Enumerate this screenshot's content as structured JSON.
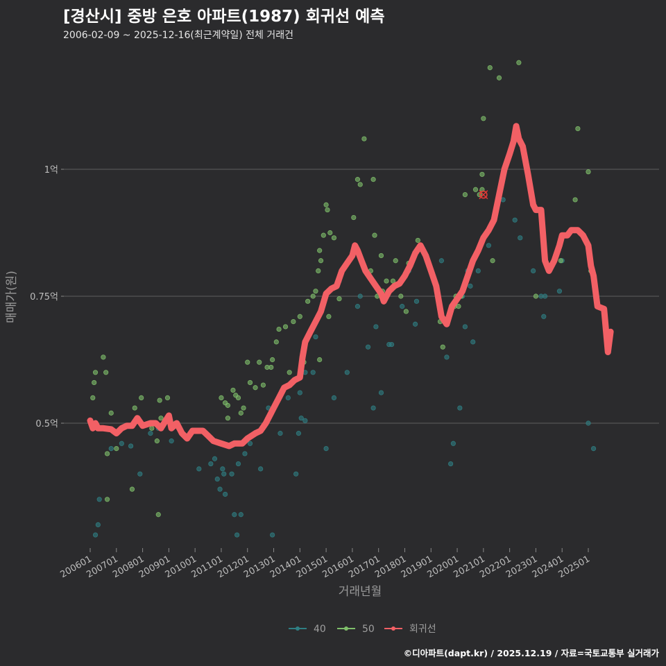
{
  "title": "[경산시] 중방 은호 아파트(1987) 회귀선 예측",
  "subtitle": "2006-02-09 ~ 2025-12-16(최근계약일) 전체 거래건",
  "footer": "©디아파트(dapt.kr) / 2025.12.19 / 자료=국토교통부 실거래가",
  "colors": {
    "background": "#2b2b2d",
    "grid": "#555555",
    "series_40": "#2f7f83",
    "series_50": "#7fbf6a",
    "regression": "#f26065",
    "highlight": "#e53935"
  },
  "chart_data": {
    "type": "scatter",
    "xlabel": "거래년월",
    "ylabel": "매매가(원)",
    "ylim": [
      0.25,
      1.25
    ],
    "xlim": [
      2005.9,
      2026.2
    ],
    "y_ticks": [
      {
        "value": 0.5,
        "label": "0.5억"
      },
      {
        "value": 0.75,
        "label": "0.75억"
      },
      {
        "value": 1.0,
        "label": "1억"
      }
    ],
    "x_ticks": [
      {
        "value": 2006.0,
        "label": "200601"
      },
      {
        "value": 2007.0,
        "label": "200701"
      },
      {
        "value": 2008.0,
        "label": "200801"
      },
      {
        "value": 2009.0,
        "label": "200901"
      },
      {
        "value": 2010.0,
        "label": "201001"
      },
      {
        "value": 2011.0,
        "label": "201101"
      },
      {
        "value": 2012.0,
        "label": "201201"
      },
      {
        "value": 2013.0,
        "label": "201301"
      },
      {
        "value": 2014.0,
        "label": "201401"
      },
      {
        "value": 2015.0,
        "label": "201501"
      },
      {
        "value": 2016.0,
        "label": "201601"
      },
      {
        "value": 2017.0,
        "label": "201701"
      },
      {
        "value": 2018.0,
        "label": "201801"
      },
      {
        "value": 2019.0,
        "label": "201901"
      },
      {
        "value": 2020.0,
        "label": "202001"
      },
      {
        "value": 2021.0,
        "label": "202101"
      },
      {
        "value": 2022.0,
        "label": "202201"
      },
      {
        "value": 2023.0,
        "label": "202301"
      },
      {
        "value": 2024.0,
        "label": "202401"
      },
      {
        "value": 2025.0,
        "label": "202501"
      }
    ],
    "legend": [
      {
        "name": "40",
        "color": "#2f7f83"
      },
      {
        "name": "50",
        "color": "#7fbf6a"
      },
      {
        "name": "회귀선",
        "color": "#f26065"
      }
    ],
    "highlight_point": {
      "x": 2021.0,
      "y": 0.95
    },
    "series": [
      {
        "name": "40",
        "points": [
          [
            2006.2,
            0.28
          ],
          [
            2006.3,
            0.3
          ],
          [
            2006.35,
            0.35
          ],
          [
            2006.8,
            0.45
          ],
          [
            2007.2,
            0.46
          ],
          [
            2007.55,
            0.455
          ],
          [
            2007.9,
            0.4
          ],
          [
            2008.3,
            0.48
          ],
          [
            2008.6,
            0.49
          ],
          [
            2009.1,
            0.465
          ],
          [
            2009.8,
            0.48
          ],
          [
            2010.15,
            0.41
          ],
          [
            2010.6,
            0.42
          ],
          [
            2010.75,
            0.43
          ],
          [
            2010.85,
            0.39
          ],
          [
            2010.95,
            0.37
          ],
          [
            2011.05,
            0.41
          ],
          [
            2011.1,
            0.4
          ],
          [
            2011.15,
            0.36
          ],
          [
            2011.4,
            0.4
          ],
          [
            2011.5,
            0.32
          ],
          [
            2011.6,
            0.28
          ],
          [
            2011.65,
            0.42
          ],
          [
            2011.75,
            0.32
          ],
          [
            2011.9,
            0.44
          ],
          [
            2012.1,
            0.46
          ],
          [
            2012.3,
            0.48
          ],
          [
            2012.5,
            0.41
          ],
          [
            2012.8,
            0.53
          ],
          [
            2012.95,
            0.28
          ],
          [
            2013.1,
            0.54
          ],
          [
            2013.25,
            0.48
          ],
          [
            2013.55,
            0.55
          ],
          [
            2013.7,
            0.58
          ],
          [
            2013.85,
            0.4
          ],
          [
            2013.95,
            0.48
          ],
          [
            2014.0,
            0.56
          ],
          [
            2014.05,
            0.51
          ],
          [
            2014.2,
            0.6
          ],
          [
            2014.5,
            0.6
          ],
          [
            2014.6,
            0.67
          ],
          [
            2015.0,
            0.45
          ],
          [
            2015.3,
            0.55
          ],
          [
            2015.5,
            0.78
          ],
          [
            2015.8,
            0.6
          ],
          [
            2016.2,
            0.73
          ],
          [
            2016.3,
            0.75
          ],
          [
            2016.6,
            0.65
          ],
          [
            2016.8,
            0.53
          ],
          [
            2016.9,
            0.69
          ],
          [
            2017.1,
            0.56
          ],
          [
            2017.4,
            0.655
          ],
          [
            2017.5,
            0.655
          ],
          [
            2017.9,
            0.73
          ],
          [
            2018.15,
            0.8
          ],
          [
            2018.4,
            0.695
          ],
          [
            2018.45,
            0.74
          ],
          [
            2019.4,
            0.82
          ],
          [
            2019.6,
            0.63
          ],
          [
            2019.75,
            0.42
          ],
          [
            2019.85,
            0.46
          ],
          [
            2020.1,
            0.53
          ],
          [
            2020.2,
            0.75
          ],
          [
            2020.3,
            0.69
          ],
          [
            2020.4,
            0.8
          ],
          [
            2020.5,
            0.77
          ],
          [
            2020.6,
            0.66
          ],
          [
            2020.7,
            0.83
          ],
          [
            2020.8,
            0.8
          ],
          [
            2021.2,
            0.85
          ],
          [
            2021.75,
            0.94
          ],
          [
            2022.2,
            0.9
          ],
          [
            2022.4,
            0.865
          ],
          [
            2022.9,
            0.8
          ],
          [
            2023.2,
            0.75
          ],
          [
            2023.3,
            0.71
          ],
          [
            2023.35,
            0.75
          ],
          [
            2023.9,
            0.76
          ],
          [
            2024.0,
            0.82
          ],
          [
            2025.0,
            0.5
          ],
          [
            2025.1,
            0.8
          ],
          [
            2025.2,
            0.45
          ],
          [
            2014.2,
            0.505
          ]
        ]
      },
      {
        "name": "50",
        "points": [
          [
            2006.1,
            0.55
          ],
          [
            2006.15,
            0.58
          ],
          [
            2006.2,
            0.6
          ],
          [
            2006.5,
            0.63
          ],
          [
            2006.6,
            0.6
          ],
          [
            2006.65,
            0.44
          ],
          [
            2006.65,
            0.35
          ],
          [
            2006.8,
            0.52
          ],
          [
            2007.0,
            0.45
          ],
          [
            2007.6,
            0.37
          ],
          [
            2007.7,
            0.53
          ],
          [
            2007.95,
            0.55
          ],
          [
            2008.35,
            0.49
          ],
          [
            2008.55,
            0.465
          ],
          [
            2008.6,
            0.32
          ],
          [
            2008.65,
            0.545
          ],
          [
            2008.7,
            0.51
          ],
          [
            2008.95,
            0.55
          ],
          [
            2009.25,
            0.5
          ],
          [
            2011.0,
            0.55
          ],
          [
            2011.15,
            0.54
          ],
          [
            2011.25,
            0.535
          ],
          [
            2011.25,
            0.51
          ],
          [
            2011.45,
            0.565
          ],
          [
            2011.55,
            0.555
          ],
          [
            2011.65,
            0.55
          ],
          [
            2011.75,
            0.52
          ],
          [
            2011.85,
            0.53
          ],
          [
            2012.0,
            0.62
          ],
          [
            2012.1,
            0.58
          ],
          [
            2012.3,
            0.57
          ],
          [
            2012.45,
            0.62
          ],
          [
            2012.6,
            0.575
          ],
          [
            2012.75,
            0.61
          ],
          [
            2012.95,
            0.625
          ],
          [
            2013.1,
            0.66
          ],
          [
            2013.2,
            0.685
          ],
          [
            2013.45,
            0.69
          ],
          [
            2013.6,
            0.6
          ],
          [
            2013.75,
            0.7
          ],
          [
            2014.0,
            0.71
          ],
          [
            2014.15,
            0.62
          ],
          [
            2014.3,
            0.74
          ],
          [
            2014.5,
            0.75
          ],
          [
            2014.6,
            0.76
          ],
          [
            2014.7,
            0.8
          ],
          [
            2014.75,
            0.84
          ],
          [
            2014.8,
            0.82
          ],
          [
            2014.9,
            0.87
          ],
          [
            2015.0,
            0.93
          ],
          [
            2015.05,
            0.92
          ],
          [
            2015.1,
            0.71
          ],
          [
            2015.15,
            0.875
          ],
          [
            2015.3,
            0.865
          ],
          [
            2015.5,
            0.745
          ],
          [
            2015.75,
            0.81
          ],
          [
            2016.05,
            0.905
          ],
          [
            2016.2,
            0.98
          ],
          [
            2016.3,
            0.97
          ],
          [
            2016.7,
            0.8
          ],
          [
            2016.8,
            0.98
          ],
          [
            2016.85,
            0.87
          ],
          [
            2016.95,
            0.75
          ],
          [
            2017.1,
            0.83
          ],
          [
            2017.15,
            0.76
          ],
          [
            2017.3,
            0.78
          ],
          [
            2017.55,
            0.78
          ],
          [
            2017.65,
            0.82
          ],
          [
            2017.85,
            0.75
          ],
          [
            2018.05,
            0.72
          ],
          [
            2018.15,
            0.815
          ],
          [
            2018.5,
            0.86
          ],
          [
            2019.35,
            0.7
          ],
          [
            2019.45,
            0.65
          ],
          [
            2019.6,
            0.7
          ],
          [
            2019.9,
            0.73
          ],
          [
            2019.95,
            0.75
          ],
          [
            2020.05,
            0.73
          ],
          [
            2020.15,
            0.75
          ],
          [
            2020.3,
            0.95
          ],
          [
            2020.7,
            0.96
          ],
          [
            2020.85,
            0.95
          ],
          [
            2020.95,
            0.96
          ],
          [
            2020.95,
            0.99
          ],
          [
            2021.0,
            1.1
          ],
          [
            2021.25,
            1.2
          ],
          [
            2021.35,
            0.82
          ],
          [
            2021.6,
            1.18
          ],
          [
            2022.35,
            1.21
          ],
          [
            2023.0,
            0.75
          ],
          [
            2023.95,
            0.82
          ],
          [
            2024.5,
            0.94
          ],
          [
            2024.6,
            1.08
          ],
          [
            2025.0,
            0.995
          ],
          [
            2025.1,
            0.8
          ],
          [
            2012.9,
            0.61
          ],
          [
            2016.45,
            1.06
          ],
          [
            2014.75,
            0.625
          ]
        ]
      }
    ],
    "regression": [
      [
        2006.0,
        0.505
      ],
      [
        2006.1,
        0.49
      ],
      [
        2006.2,
        0.5
      ],
      [
        2006.3,
        0.49
      ],
      [
        2006.5,
        0.49
      ],
      [
        2006.8,
        0.488
      ],
      [
        2007.0,
        0.48
      ],
      [
        2007.2,
        0.49
      ],
      [
        2007.4,
        0.495
      ],
      [
        2007.6,
        0.495
      ],
      [
        2007.8,
        0.51
      ],
      [
        2008.0,
        0.495
      ],
      [
        2008.3,
        0.5
      ],
      [
        2008.5,
        0.5
      ],
      [
        2008.7,
        0.49
      ],
      [
        2009.0,
        0.515
      ],
      [
        2009.1,
        0.49
      ],
      [
        2009.3,
        0.5
      ],
      [
        2009.5,
        0.48
      ],
      [
        2009.7,
        0.47
      ],
      [
        2009.9,
        0.485
      ],
      [
        2010.3,
        0.485
      ],
      [
        2010.5,
        0.475
      ],
      [
        2010.7,
        0.465
      ],
      [
        2011.0,
        0.46
      ],
      [
        2011.3,
        0.455
      ],
      [
        2011.5,
        0.46
      ],
      [
        2011.8,
        0.46
      ],
      [
        2012.0,
        0.47
      ],
      [
        2012.3,
        0.48
      ],
      [
        2012.5,
        0.485
      ],
      [
        2012.7,
        0.5
      ],
      [
        2012.9,
        0.52
      ],
      [
        2013.0,
        0.53
      ],
      [
        2013.2,
        0.55
      ],
      [
        2013.4,
        0.57
      ],
      [
        2013.6,
        0.575
      ],
      [
        2013.8,
        0.585
      ],
      [
        2014.0,
        0.59
      ],
      [
        2014.1,
        0.63
      ],
      [
        2014.2,
        0.66
      ],
      [
        2014.4,
        0.68
      ],
      [
        2014.6,
        0.7
      ],
      [
        2014.8,
        0.72
      ],
      [
        2015.0,
        0.755
      ],
      [
        2015.2,
        0.765
      ],
      [
        2015.4,
        0.77
      ],
      [
        2015.6,
        0.8
      ],
      [
        2015.8,
        0.815
      ],
      [
        2016.0,
        0.83
      ],
      [
        2016.1,
        0.85
      ],
      [
        2016.2,
        0.84
      ],
      [
        2016.35,
        0.82
      ],
      [
        2016.5,
        0.8
      ],
      [
        2016.7,
        0.785
      ],
      [
        2016.9,
        0.77
      ],
      [
        2017.1,
        0.755
      ],
      [
        2017.2,
        0.74
      ],
      [
        2017.4,
        0.76
      ],
      [
        2017.6,
        0.77
      ],
      [
        2017.8,
        0.775
      ],
      [
        2018.0,
        0.79
      ],
      [
        2018.2,
        0.81
      ],
      [
        2018.4,
        0.835
      ],
      [
        2018.6,
        0.85
      ],
      [
        2018.8,
        0.83
      ],
      [
        2019.0,
        0.8
      ],
      [
        2019.2,
        0.77
      ],
      [
        2019.4,
        0.71
      ],
      [
        2019.6,
        0.695
      ],
      [
        2019.8,
        0.73
      ],
      [
        2020.0,
        0.745
      ],
      [
        2020.2,
        0.76
      ],
      [
        2020.4,
        0.79
      ],
      [
        2020.6,
        0.82
      ],
      [
        2020.8,
        0.84
      ],
      [
        2021.0,
        0.865
      ],
      [
        2021.2,
        0.88
      ],
      [
        2021.4,
        0.9
      ],
      [
        2021.6,
        0.95
      ],
      [
        2021.8,
        1.0
      ],
      [
        2022.0,
        1.03
      ],
      [
        2022.15,
        1.055
      ],
      [
        2022.25,
        1.085
      ],
      [
        2022.35,
        1.06
      ],
      [
        2022.5,
        1.045
      ],
      [
        2022.7,
        0.99
      ],
      [
        2022.9,
        0.93
      ],
      [
        2023.0,
        0.92
      ],
      [
        2023.2,
        0.92
      ],
      [
        2023.35,
        0.82
      ],
      [
        2023.5,
        0.8
      ],
      [
        2023.7,
        0.82
      ],
      [
        2023.9,
        0.85
      ],
      [
        2024.0,
        0.87
      ],
      [
        2024.2,
        0.87
      ],
      [
        2024.35,
        0.88
      ],
      [
        2024.6,
        0.88
      ],
      [
        2024.8,
        0.87
      ],
      [
        2025.0,
        0.85
      ],
      [
        2025.1,
        0.81
      ],
      [
        2025.2,
        0.79
      ],
      [
        2025.35,
        0.73
      ],
      [
        2025.6,
        0.725
      ],
      [
        2025.75,
        0.64
      ],
      [
        2025.85,
        0.68
      ]
    ]
  }
}
